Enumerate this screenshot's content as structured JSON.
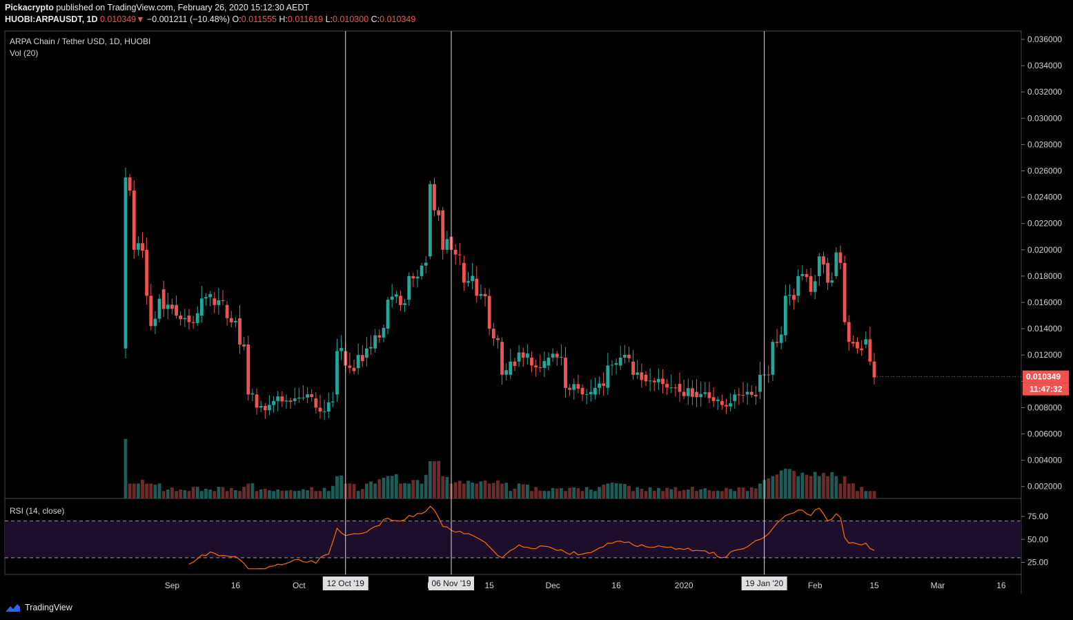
{
  "header": {
    "publisher": "Pickacrypto",
    "published_text": "published on TradingView.com, February 26, 2020 15:12:30 AEDT",
    "symbol": "HUOBI:ARPAUSDT, 1D",
    "last": "0.010349",
    "change_arrow": "▼",
    "change": "−0.001211 (−10.48%)",
    "o_label": "O:",
    "o": "0.011555",
    "h_label": "H:",
    "h": "0.011619",
    "l_label": "L:",
    "l": "0.010300",
    "c_label": "C:",
    "c": "0.010349"
  },
  "chart_data": {
    "type": "candlestick",
    "title": "ARPA Chain / Tether USD, 1D, HUOBI",
    "volume_label": "Vol (20)",
    "rsi_label": "RSI (14, close)",
    "price_ticks": [
      "0.002000",
      "0.004000",
      "0.006000",
      "0.008000",
      "0.010000",
      "0.012000",
      "0.014000",
      "0.016000",
      "0.018000",
      "0.020000",
      "0.022000",
      "0.024000",
      "0.026000",
      "0.028000",
      "0.030000",
      "0.032000",
      "0.034000",
      "0.036000"
    ],
    "rsi_ticks": [
      "25.00",
      "50.00",
      "75.00"
    ],
    "rsi_levels": [
      30,
      70
    ],
    "x_ticks": [
      {
        "label": "Sep",
        "day": 11
      },
      {
        "label": "16",
        "day": 26
      },
      {
        "label": "Oct",
        "day": 41
      },
      {
        "label": "N",
        "day": 72
      },
      {
        "label": "15",
        "day": 86
      },
      {
        "label": "Dec",
        "day": 101
      },
      {
        "label": "16",
        "day": 116
      },
      {
        "label": "2020",
        "day": 132
      },
      {
        "label": "Feb",
        "day": 163
      },
      {
        "label": "15",
        "day": 177
      },
      {
        "label": "Mar",
        "day": 192
      },
      {
        "label": "16",
        "day": 207
      }
    ],
    "markers": [
      {
        "label": "12 Oct '19",
        "day": 52
      },
      {
        "label": "06 Nov '19",
        "day": 77
      },
      {
        "label": "19 Jan '20",
        "day": 151
      }
    ],
    "last_price_label": "0.010349",
    "countdown_label": "11:47:32",
    "up_color": "#26a69a",
    "down_color": "#ef5350",
    "rsi_color": "#ff6d00",
    "anchors": [
      [
        0,
        0.0125,
        0.0255,
        8,
        25
      ],
      [
        1,
        0.0255,
        0.0245,
        2,
        30
      ],
      [
        2,
        0.0245,
        0.02,
        2,
        26
      ],
      [
        3,
        0.02,
        0.0205,
        2,
        28
      ],
      [
        5,
        0.02,
        0.0165,
        2,
        20
      ],
      [
        6,
        0.0165,
        0.0142,
        2,
        18
      ],
      [
        9,
        0.017,
        0.0155,
        1,
        22
      ],
      [
        12,
        0.0158,
        0.015,
        1,
        20
      ],
      [
        15,
        0.015,
        0.0145,
        1,
        23
      ],
      [
        18,
        0.015,
        0.0163,
        1,
        33
      ],
      [
        21,
        0.0163,
        0.0158,
        1,
        35
      ],
      [
        24,
        0.0158,
        0.0148,
        1,
        32
      ],
      [
        27,
        0.0148,
        0.0128,
        1,
        28
      ],
      [
        29,
        0.0128,
        0.009,
        2,
        18
      ],
      [
        31,
        0.009,
        0.008,
        1,
        16
      ],
      [
        35,
        0.0082,
        0.0085,
        1,
        21
      ],
      [
        40,
        0.0085,
        0.0087,
        1,
        28
      ],
      [
        45,
        0.0087,
        0.008,
        1,
        24
      ],
      [
        46,
        0.008,
        0.0077,
        1,
        30
      ],
      [
        48,
        0.0077,
        0.0084,
        1,
        34
      ],
      [
        50,
        0.009,
        0.0123,
        3,
        62
      ],
      [
        52,
        0.0123,
        0.0112,
        2,
        54
      ],
      [
        55,
        0.011,
        0.012,
        1,
        56
      ],
      [
        57,
        0.0118,
        0.0125,
        2,
        58
      ],
      [
        59,
        0.0125,
        0.0135,
        2,
        64
      ],
      [
        62,
        0.014,
        0.0162,
        3,
        73
      ],
      [
        65,
        0.0165,
        0.0158,
        2,
        70
      ],
      [
        67,
        0.0162,
        0.018,
        2,
        76
      ],
      [
        70,
        0.018,
        0.0188,
        2,
        78
      ],
      [
        72,
        0.0195,
        0.025,
        5,
        86
      ],
      [
        73,
        0.025,
        0.023,
        5,
        82
      ],
      [
        75,
        0.023,
        0.02,
        3,
        64
      ],
      [
        77,
        0.021,
        0.02,
        2,
        60
      ],
      [
        80,
        0.019,
        0.0175,
        2,
        56
      ],
      [
        83,
        0.0178,
        0.0165,
        2,
        52
      ],
      [
        86,
        0.0165,
        0.014,
        2,
        42
      ],
      [
        89,
        0.013,
        0.0105,
        2,
        30
      ],
      [
        91,
        0.0105,
        0.0115,
        1,
        38
      ],
      [
        93,
        0.0115,
        0.0122,
        2,
        44
      ],
      [
        96,
        0.0118,
        0.0112,
        1,
        40
      ],
      [
        100,
        0.0112,
        0.0118,
        1,
        42
      ],
      [
        104,
        0.0118,
        0.0095,
        1,
        36
      ],
      [
        108,
        0.0095,
        0.009,
        1,
        34
      ],
      [
        111,
        0.009,
        0.0095,
        1,
        38
      ],
      [
        114,
        0.0095,
        0.0112,
        2,
        46
      ],
      [
        117,
        0.0112,
        0.0118,
        2,
        48
      ],
      [
        120,
        0.0115,
        0.0105,
        1,
        44
      ],
      [
        123,
        0.0105,
        0.01,
        1,
        42
      ],
      [
        127,
        0.0102,
        0.0098,
        1,
        42
      ],
      [
        131,
        0.0098,
        0.0092,
        1,
        40
      ],
      [
        135,
        0.0092,
        0.0088,
        1,
        38
      ],
      [
        139,
        0.0088,
        0.0085,
        1,
        36
      ],
      [
        141,
        0.0085,
        0.0082,
        1,
        30
      ],
      [
        144,
        0.0085,
        0.009,
        1,
        38
      ],
      [
        147,
        0.009,
        0.0092,
        1,
        42
      ],
      [
        150,
        0.0092,
        0.0105,
        2,
        50
      ],
      [
        153,
        0.0105,
        0.013,
        3,
        62
      ],
      [
        156,
        0.0135,
        0.0165,
        4,
        76
      ],
      [
        159,
        0.0165,
        0.018,
        3,
        82
      ],
      [
        162,
        0.018,
        0.0168,
        3,
        76
      ],
      [
        164,
        0.018,
        0.0195,
        3,
        84
      ],
      [
        166,
        0.019,
        0.0175,
        3,
        70
      ],
      [
        168,
        0.018,
        0.0198,
        3,
        78
      ],
      [
        169,
        0.0198,
        0.019,
        2,
        74
      ],
      [
        170,
        0.019,
        0.0145,
        3,
        52
      ],
      [
        171,
        0.0145,
        0.013,
        2,
        46
      ],
      [
        173,
        0.013,
        0.0125,
        1,
        45
      ],
      [
        175,
        0.0128,
        0.0132,
        1,
        46
      ],
      [
        176,
        0.0132,
        0.0115,
        1,
        40
      ],
      [
        177,
        0.0115,
        0.0103,
        1,
        38
      ]
    ]
  }
}
